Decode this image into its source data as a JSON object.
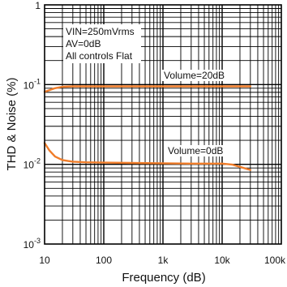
{
  "chart_data": {
    "type": "line",
    "title": "",
    "xlabel": "Frequency  (dB)",
    "ylabel": "THD  & Noise (%)",
    "x_scale": "log",
    "y_scale": "log",
    "xlim": [
      10,
      100000
    ],
    "ylim": [
      0.001,
      1
    ],
    "grid": true,
    "line_color": "#f07d2a",
    "x_ticks": [
      {
        "value": 10,
        "label": "10"
      },
      {
        "value": 100,
        "label": "100"
      },
      {
        "value": 1000,
        "label": "1k"
      },
      {
        "value": 10000,
        "label": "10k"
      },
      {
        "value": 100000,
        "label": "100k"
      }
    ],
    "y_ticks": [
      {
        "value": 1,
        "base": "1",
        "exp": ""
      },
      {
        "value": 0.1,
        "base": "10",
        "exp": "-1"
      },
      {
        "value": 0.01,
        "base": "10",
        "exp": "-2"
      },
      {
        "value": 0.001,
        "base": "10",
        "exp": "-3"
      }
    ],
    "conditions": [
      "VIN=250mVrms",
      "AV=0dB",
      "All controls Flat"
    ],
    "series": [
      {
        "name": "Volume=20dB",
        "x": [
          10,
          12,
          15,
          20,
          30,
          50,
          100,
          300,
          1000,
          3000,
          10000,
          20000,
          30000
        ],
        "y": [
          0.081,
          0.085,
          0.09,
          0.094,
          0.095,
          0.095,
          0.095,
          0.095,
          0.095,
          0.095,
          0.095,
          0.095,
          0.095
        ]
      },
      {
        "name": "Volume=0dB",
        "x": [
          10,
          12,
          15,
          20,
          25,
          30,
          50,
          100,
          300,
          1000,
          3000,
          10000,
          15000,
          20000,
          30000
        ],
        "y": [
          0.0185,
          0.015,
          0.0125,
          0.0113,
          0.011,
          0.0108,
          0.0106,
          0.0105,
          0.0104,
          0.0103,
          0.0102,
          0.0102,
          0.0099,
          0.0093,
          0.0085
        ]
      }
    ]
  }
}
